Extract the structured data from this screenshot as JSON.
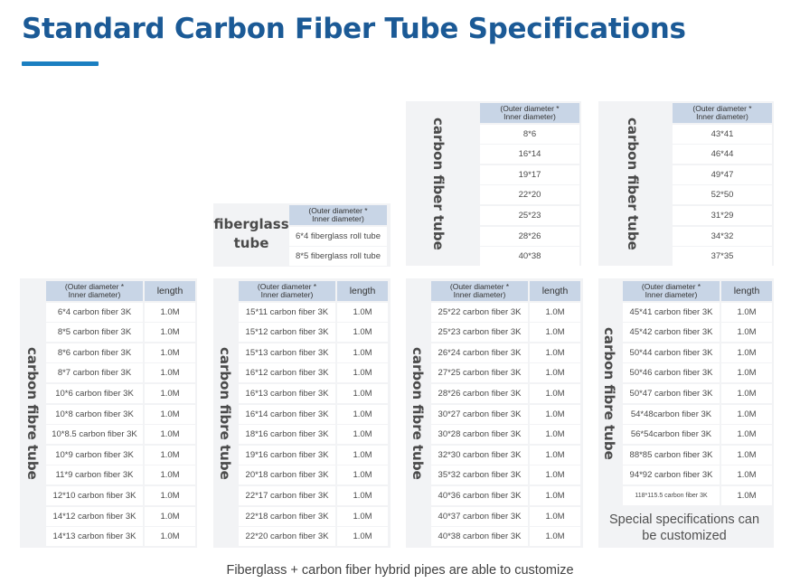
{
  "title": "Standard Carbon Fiber Tube Specifications",
  "headers": {
    "diameter": "(Outer diameter *\nInner diameter)",
    "length": "length"
  },
  "top_tables": {
    "fiberglass": {
      "label": "fiberglass tube",
      "rows": [
        "6*4 fiberglass roll tube",
        "8*5 fiberglass roll tube"
      ]
    },
    "carbon_a": {
      "label": "carbon fiber tube",
      "rows": [
        "8*6",
        "16*14",
        "19*17",
        "22*20",
        "25*23",
        "28*26",
        "40*38"
      ]
    },
    "carbon_b": {
      "label": "carbon fiber tube",
      "rows": [
        "43*41",
        "46*44",
        "49*47",
        "52*50",
        "31*29",
        "34*32",
        "37*35"
      ]
    }
  },
  "bottom_tables": [
    {
      "label": "carbon fibre tube",
      "rows": [
        [
          "6*4 carbon fiber 3K",
          "1.0M"
        ],
        [
          "8*5 carbon fiber 3K",
          "1.0M"
        ],
        [
          "8*6 carbon fiber 3K",
          "1.0M"
        ],
        [
          "8*7 carbon fiber 3K",
          "1.0M"
        ],
        [
          "10*6 carbon fiber 3K",
          "1.0M"
        ],
        [
          "10*8 carbon fiber 3K",
          "1.0M"
        ],
        [
          "10*8.5 carbon fiber 3K",
          "1.0M"
        ],
        [
          "10*9 carbon fiber 3K",
          "1.0M"
        ],
        [
          "11*9 carbon fiber 3K",
          "1.0M"
        ],
        [
          "12*10 carbon fiber 3K",
          "1.0M"
        ],
        [
          "14*12 carbon fiber 3K",
          "1.0M"
        ],
        [
          "14*13 carbon fiber 3K",
          "1.0M"
        ]
      ]
    },
    {
      "label": "carbon fibre tube",
      "rows": [
        [
          "15*11 carbon fiber 3K",
          "1.0M"
        ],
        [
          "15*12 carbon fiber 3K",
          "1.0M"
        ],
        [
          "15*13 carbon fiber 3K",
          "1.0M"
        ],
        [
          "16*12 carbon fiber 3K",
          "1.0M"
        ],
        [
          "16*13 carbon fiber 3K",
          "1.0M"
        ],
        [
          "16*14 carbon fiber 3K",
          "1.0M"
        ],
        [
          "18*16 carbon fiber 3K",
          "1.0M"
        ],
        [
          "19*16 carbon fiber 3K",
          "1.0M"
        ],
        [
          "20*18 carbon fiber 3K",
          "1.0M"
        ],
        [
          "22*17 carbon fiber 3K",
          "1.0M"
        ],
        [
          "22*18 carbon fiber 3K",
          "1.0M"
        ],
        [
          "22*20 carbon fiber 3K",
          "1.0M"
        ]
      ]
    },
    {
      "label": "carbon fibre tube",
      "rows": [
        [
          "25*22 carbon fiber 3K",
          "1.0M"
        ],
        [
          "25*23 carbon fiber 3K",
          "1.0M"
        ],
        [
          "26*24 carbon fiber 3K",
          "1.0M"
        ],
        [
          "27*25 carbon fiber 3K",
          "1.0M"
        ],
        [
          "28*26 carbon fiber 3K",
          "1.0M"
        ],
        [
          "30*27 carbon fiber 3K",
          "1.0M"
        ],
        [
          "30*28 carbon fiber 3K",
          "1.0M"
        ],
        [
          "32*30 carbon fiber 3K",
          "1.0M"
        ],
        [
          "35*32 carbon fiber 3K",
          "1.0M"
        ],
        [
          "40*36 carbon fiber 3K",
          "1.0M"
        ],
        [
          "40*37 carbon fiber 3K",
          "1.0M"
        ],
        [
          "40*38 carbon fiber 3K",
          "1.0M"
        ]
      ]
    },
    {
      "label": "carbon fibre tube",
      "rows": [
        [
          "45*41 carbon fiber 3K",
          "1.0M"
        ],
        [
          "45*42 carbon fiber 3K",
          "1.0M"
        ],
        [
          "50*44 carbon fiber 3K",
          "1.0M"
        ],
        [
          "50*46 carbon fiber 3K",
          "1.0M"
        ],
        [
          "50*47 carbon fiber 3K",
          "1.0M"
        ],
        [
          "54*48carbon fiber 3K",
          "1.0M"
        ],
        [
          "56*54carbon fiber 3K",
          "1.0M"
        ],
        [
          "88*85 carbon fiber 3K",
          "1.0M"
        ],
        [
          "94*92 carbon fiber 3K",
          "1.0M"
        ],
        [
          "118*115.5 carbon fiber 3K",
          "1.0M"
        ]
      ]
    }
  ],
  "special_note": "Special specifications can be customized",
  "footer": "Fiberglass + carbon fiber hybrid pipes are able to customize"
}
